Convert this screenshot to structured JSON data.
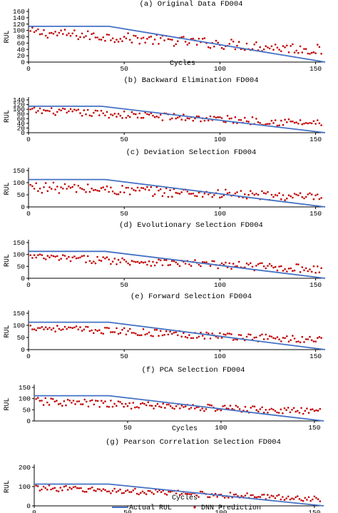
{
  "legend": {
    "actual_label": "Actual RUL",
    "pred_label": "DNN Prediction",
    "actual_color": "#4472c4",
    "pred_color": "#c00000"
  },
  "chart_data": [
    {
      "type": "line",
      "title": "(a) Original Data FD004",
      "xlabel": "Cycles",
      "ylabel": "RUL",
      "xlim": [
        0,
        155
      ],
      "ylim": [
        0,
        160
      ],
      "xticks": [
        0,
        50,
        100,
        150
      ],
      "yticks": [
        0,
        20,
        40,
        60,
        80,
        100,
        120,
        140,
        160
      ],
      "actual_rul": {
        "x": [
          0,
          42,
          155
        ],
        "y": [
          113,
          113,
          0
        ]
      },
      "prediction_range": {
        "x": [
          0,
          155
        ],
        "start": [
          80,
          110
        ],
        "end": [
          20,
          55
        ]
      }
    },
    {
      "type": "line",
      "title": "(b) Backward Elimination FD004",
      "xlabel": "",
      "ylabel": "RUL",
      "xlim": [
        0,
        155
      ],
      "ylim": [
        0,
        140
      ],
      "xticks": [
        0,
        50,
        100,
        150
      ],
      "yticks": [
        0,
        20,
        40,
        60,
        80,
        100,
        120,
        140
      ],
      "actual_rul": {
        "x": [
          0,
          38,
          155
        ],
        "y": [
          113,
          113,
          0
        ]
      },
      "prediction_range": {
        "x": [
          0,
          155
        ],
        "start": [
          80,
          110
        ],
        "end": [
          20,
          55
        ]
      }
    },
    {
      "type": "line",
      "title": "(c) Deviation Selection FD004",
      "xlabel": "",
      "ylabel": "RUL",
      "xlim": [
        0,
        155
      ],
      "ylim": [
        0,
        150
      ],
      "xticks": [
        0,
        50,
        100,
        150
      ],
      "yticks": [
        0,
        50,
        100,
        150
      ],
      "actual_rul": {
        "x": [
          0,
          40,
          155
        ],
        "y": [
          113,
          113,
          0
        ]
      },
      "prediction_range": {
        "x": [
          0,
          155
        ],
        "start": [
          60,
          105
        ],
        "end": [
          20,
          55
        ]
      }
    },
    {
      "type": "line",
      "title": "(d) Evolutionary Selection FD004",
      "xlabel": "",
      "ylabel": "RUL",
      "xlim": [
        0,
        155
      ],
      "ylim": [
        0,
        150
      ],
      "xticks": [
        0,
        50,
        100,
        150
      ],
      "yticks": [
        0,
        50,
        100,
        150
      ],
      "actual_rul": {
        "x": [
          0,
          40,
          155
        ],
        "y": [
          113,
          113,
          0
        ]
      },
      "prediction_range": {
        "x": [
          0,
          155
        ],
        "start": [
          75,
          105
        ],
        "end": [
          20,
          55
        ]
      }
    },
    {
      "type": "line",
      "title": "(e) Forward Selection FD004",
      "xlabel": "",
      "ylabel": "RUL",
      "xlim": [
        0,
        155
      ],
      "ylim": [
        0,
        150
      ],
      "xticks": [
        0,
        50,
        100,
        150
      ],
      "yticks": [
        0,
        50,
        100,
        150
      ],
      "actual_rul": {
        "x": [
          0,
          42,
          155
        ],
        "y": [
          113,
          113,
          0
        ]
      },
      "prediction_range": {
        "x": [
          0,
          155
        ],
        "start": [
          80,
          105
        ],
        "end": [
          20,
          55
        ]
      }
    },
    {
      "type": "line",
      "title": "(f) PCA Selection FD004",
      "xlabel": "Cycles",
      "ylabel": "RUL",
      "xlim": [
        0,
        155
      ],
      "ylim": [
        0,
        150
      ],
      "xticks": [
        50,
        100,
        150
      ],
      "yticks": [
        0,
        50,
        100,
        150
      ],
      "actual_rul": {
        "x": [
          0,
          40,
          155
        ],
        "y": [
          113,
          113,
          0
        ]
      },
      "prediction_range": {
        "x": [
          0,
          155
        ],
        "start": [
          70,
          105
        ],
        "end": [
          25,
          55
        ]
      }
    },
    {
      "type": "line",
      "title": "(g) Pearson Correlation Selection FD004",
      "xlabel": "Cycles",
      "ylabel": "RUL",
      "xlim": [
        0,
        155
      ],
      "ylim": [
        0,
        200
      ],
      "xticks": [
        0,
        50,
        100,
        150
      ],
      "yticks": [
        0,
        100,
        200
      ],
      "actual_rul": {
        "x": [
          0,
          40,
          155
        ],
        "y": [
          113,
          113,
          0
        ]
      },
      "prediction_range": {
        "x": [
          0,
          155
        ],
        "start": [
          80,
          110
        ],
        "end": [
          20,
          50
        ]
      }
    }
  ]
}
